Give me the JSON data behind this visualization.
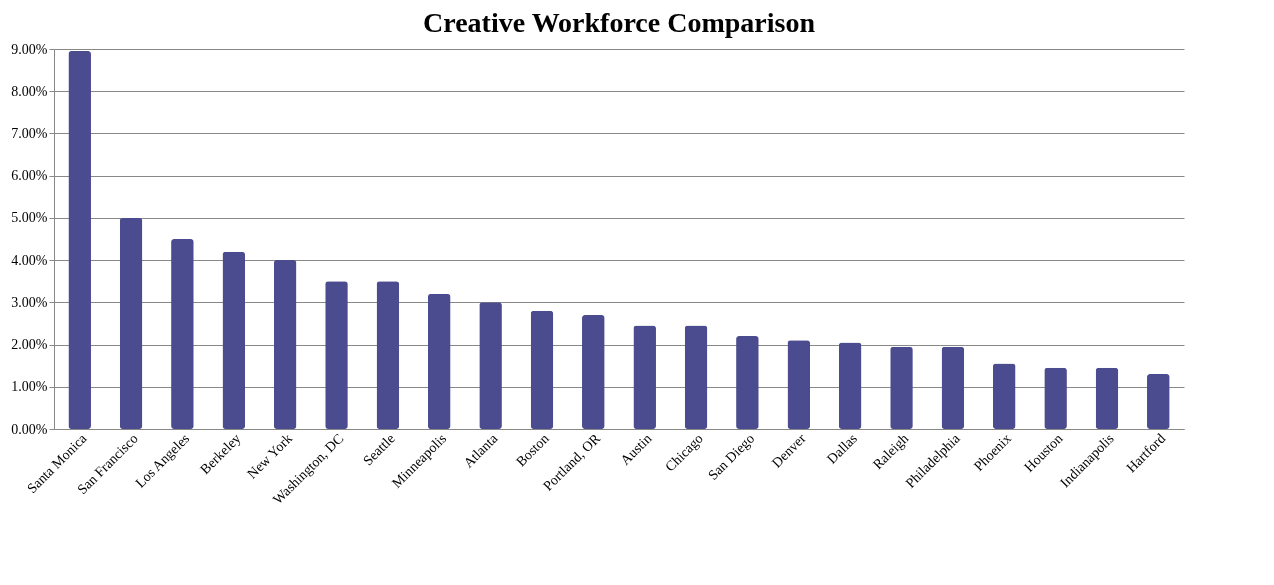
{
  "chart_data": {
    "type": "bar",
    "title": "Creative Workforce Comparison",
    "categories": [
      "Santa Monica",
      "San Francisco",
      "Los Angeles",
      "Berkeley",
      "New York",
      "Washington, DC",
      "Seattle",
      "Minneapolis",
      "Atlanta",
      "Boston",
      "Portland, OR",
      "Austin",
      "Chicago",
      "San Diego",
      "Denver",
      "Dallas",
      "Raleigh",
      "Philadelphia",
      "Phoenix",
      "Houston",
      "Indianapolis",
      "Hartford"
    ],
    "values": [
      8.95,
      5.0,
      4.5,
      4.2,
      4.0,
      3.5,
      3.5,
      3.2,
      3.0,
      2.8,
      2.7,
      2.45,
      2.45,
      2.2,
      2.1,
      2.05,
      1.95,
      1.95,
      1.55,
      1.45,
      1.45,
      1.3
    ],
    "color": "#4b4b8f",
    "ylim": [
      0,
      9
    ],
    "yticks": [
      {
        "value": 0,
        "label": "0.00%"
      },
      {
        "value": 1,
        "label": "1.00%"
      },
      {
        "value": 2,
        "label": "2.00%"
      },
      {
        "value": 3,
        "label": "3.00%"
      },
      {
        "value": 4,
        "label": "4.00%"
      },
      {
        "value": 5,
        "label": "5.00%"
      },
      {
        "value": 6,
        "label": "6.00%"
      },
      {
        "value": 7,
        "label": "7.00%"
      },
      {
        "value": 8,
        "label": "8.00%"
      },
      {
        "value": 9,
        "label": "9.00%"
      }
    ],
    "grid": "y"
  }
}
